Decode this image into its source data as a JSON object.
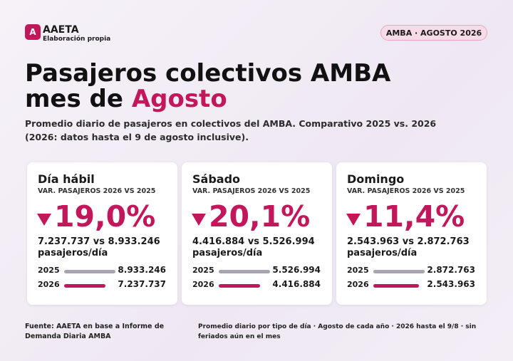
{
  "header": {
    "logo_letter": "A",
    "org": "AAETA",
    "org_note": "Elaboración propia",
    "badge": "AMBA · AGOSTO 2026"
  },
  "title": {
    "line1": "Pasajeros colectivos AMBA",
    "line2_prefix": "mes de",
    "line2_highlight": "Agosto"
  },
  "subtitle": {
    "line1": "Promedio diario de pasajeros en colectivos del AMBA. Comparativo 2025 vs. 2026",
    "line2": "(2026: datos hasta el 9 de agosto inclusive)."
  },
  "cards": [
    {
      "title": "Día hábil",
      "kicker": "VAR. PASAJEROS 2026 VS 2025",
      "change": "19,0%",
      "comparison": "7.237.737 vs 8.933.246",
      "unit": "pasajeros/día",
      "bars": [
        {
          "year": "2025",
          "value": 8933246,
          "label": "8.933.246"
        },
        {
          "year": "2026",
          "value": 7237737,
          "label": "7.237.737"
        }
      ]
    },
    {
      "title": "Sábado",
      "kicker": "VAR. PASAJEROS 2026 VS 2025",
      "change": "20,1%",
      "comparison": "4.416.884 vs 5.526.994",
      "unit": "pasajeros/día",
      "bars": [
        {
          "year": "2025",
          "value": 5526994,
          "label": "5.526.994"
        },
        {
          "year": "2026",
          "value": 4416884,
          "label": "4.416.884"
        }
      ]
    },
    {
      "title": "Domingo",
      "kicker": "VAR. PASAJEROS 2026 VS 2025",
      "change": "11,4%",
      "comparison": "2.543.963 vs 2.872.763",
      "unit": "pasajeros/día",
      "bars": [
        {
          "year": "2025",
          "value": 2872763,
          "label": "2.872.763"
        },
        {
          "year": "2026",
          "value": 2543963,
          "label": "2.543.963"
        }
      ]
    }
  ],
  "footer": {
    "source_line1": "Fuente: AAETA en base a Informe de",
    "source_line2": "Demanda Diaria AMBA",
    "note_line1": "Promedio diario por tipo de día · Agosto de cada año · 2026 hasta el 9/8 · sin",
    "note_line2": "feriados aún en el mes"
  }
}
